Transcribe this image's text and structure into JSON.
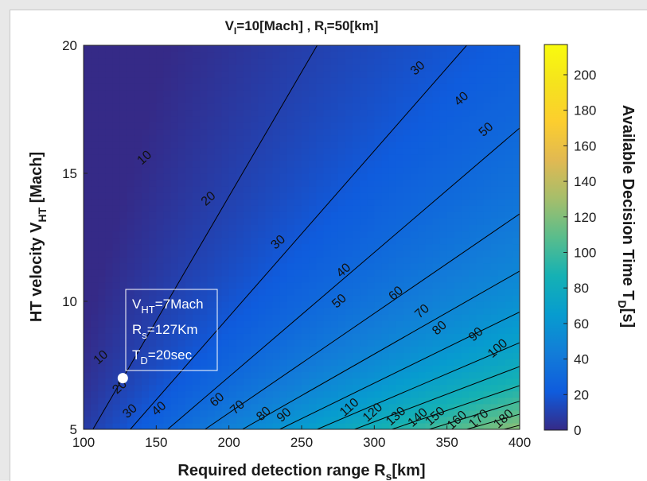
{
  "chart_data": {
    "type": "heatmap",
    "subtype": "filled-contour",
    "title": "V_I=10[Mach] , R_I=50[km]",
    "title_parts": [
      "V",
      "I",
      "=10[Mach] , R",
      "I",
      "=50[km]"
    ],
    "xlabel": "Required detection range R_s[km]",
    "xlabel_parts": [
      "Required detection range R",
      "s",
      "[km]"
    ],
    "ylabel": "HT velocity V_HT [Mach]",
    "ylabel_parts": [
      "HT velocity V",
      "HT",
      " [Mach]"
    ],
    "colorbar_label": "Available Decision Time T_D[s]",
    "colorbar_label_parts": [
      "Available Decision Time T",
      "D",
      "[s]"
    ],
    "xlim": [
      100,
      400
    ],
    "ylim": [
      5,
      20
    ],
    "clim": [
      0,
      217
    ],
    "x_ticks": [
      100,
      150,
      200,
      250,
      300,
      350,
      400
    ],
    "x_tick_labels": [
      "100",
      "150",
      "200",
      "250",
      "300",
      "350",
      "400"
    ],
    "y_ticks": [
      5,
      10,
      15,
      20
    ],
    "y_tick_labels": [
      "5",
      "10",
      "15",
      "20"
    ],
    "colorbar_ticks": [
      0,
      20,
      40,
      60,
      80,
      100,
      120,
      140,
      160,
      180,
      200
    ],
    "colorbar_tick_labels": [
      "0",
      "20",
      "40",
      "60",
      "80",
      "100",
      "120",
      "140",
      "160",
      "180",
      "200"
    ],
    "colormap": "parula",
    "contour_levels": [
      10,
      20,
      30,
      40,
      50,
      60,
      70,
      80,
      90,
      100,
      110,
      120,
      130,
      140,
      150,
      160,
      170,
      180
    ],
    "contour_labels": [
      {
        "text": "10",
        "x": 142,
        "y": 15.6
      },
      {
        "text": "20",
        "x": 186,
        "y": 14.0
      },
      {
        "text": "30",
        "x": 234,
        "y": 12.3
      },
      {
        "text": "40",
        "x": 279,
        "y": 11.2
      },
      {
        "text": "50",
        "x": 276,
        "y": 10.0
      },
      {
        "text": "60",
        "x": 315,
        "y": 10.3
      },
      {
        "text": "70",
        "x": 333,
        "y": 9.6
      },
      {
        "text": "80",
        "x": 345,
        "y": 8.95
      },
      {
        "text": "90",
        "x": 370,
        "y": 8.7
      },
      {
        "text": "100",
        "x": 385,
        "y": 8.15
      },
      {
        "text": "30",
        "x": 330,
        "y": 19.1
      },
      {
        "text": "40",
        "x": 360,
        "y": 17.9
      },
      {
        "text": "50",
        "x": 377,
        "y": 16.7
      },
      {
        "text": "10",
        "x": 112,
        "y": 7.8
      },
      {
        "text": "20",
        "x": 125,
        "y": 6.65
      },
      {
        "text": "30",
        "x": 132,
        "y": 5.7
      },
      {
        "text": "40",
        "x": 152,
        "y": 5.8
      },
      {
        "text": "60",
        "x": 192,
        "y": 6.15
      },
      {
        "text": "70",
        "x": 206,
        "y": 5.85
      },
      {
        "text": "80",
        "x": 224,
        "y": 5.6
      },
      {
        "text": "90",
        "x": 238,
        "y": 5.55
      },
      {
        "text": "110",
        "x": 283,
        "y": 5.85
      },
      {
        "text": "120",
        "x": 299,
        "y": 5.65
      },
      {
        "text": "130",
        "x": 315,
        "y": 5.5
      },
      {
        "text": "140",
        "x": 330,
        "y": 5.45
      },
      {
        "text": "150",
        "x": 342,
        "y": 5.5
      },
      {
        "text": "160",
        "x": 357,
        "y": 5.35
      },
      {
        "text": "170",
        "x": 372,
        "y": 5.4
      },
      {
        "text": "180",
        "x": 389,
        "y": 5.4
      }
    ],
    "annotation": {
      "point": {
        "x": 127,
        "y": 7
      },
      "lines": [
        {
          "main": "V",
          "sub": "HT",
          "rest": "=7Mach"
        },
        {
          "main": "R",
          "sub": "s",
          "rest": "=127Km"
        },
        {
          "main": "T",
          "sub": "D",
          "rest": "=20sec"
        }
      ]
    },
    "grid": false,
    "legend": "none"
  }
}
